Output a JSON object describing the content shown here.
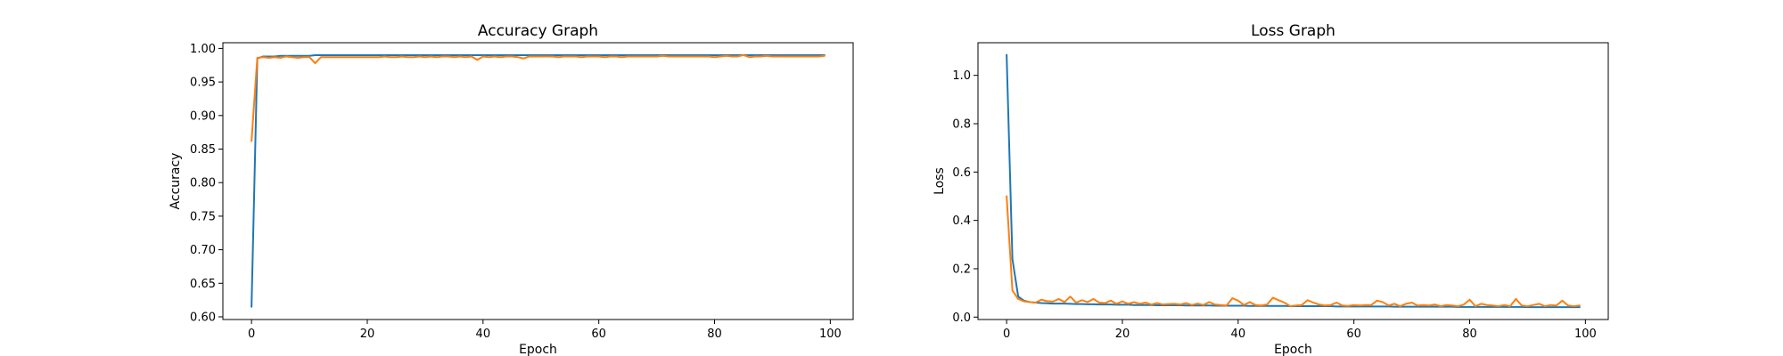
{
  "colors": {
    "series_1": "#1f77b4",
    "series_2": "#ff7f0e"
  },
  "chart_data": [
    {
      "type": "line",
      "title": "Accuracy Graph",
      "xlabel": "Epoch",
      "ylabel": "Accuracy",
      "xlim": [
        -4.95,
        103.95
      ],
      "ylim": [
        0.596,
        1.0085
      ],
      "xticks": [
        0,
        20,
        40,
        60,
        80,
        100
      ],
      "yticks": [
        0.6,
        0.65,
        0.7,
        0.75,
        0.8,
        0.85,
        0.9,
        0.95,
        1.0
      ],
      "ytick_labels": [
        "0.60",
        "0.65",
        "0.70",
        "0.75",
        "0.80",
        "0.85",
        "0.90",
        "0.95",
        "1.00"
      ],
      "grid": false,
      "x": [
        0,
        1,
        2,
        3,
        4,
        5,
        6,
        7,
        8,
        9,
        10,
        11,
        12,
        13,
        14,
        15,
        16,
        17,
        18,
        19,
        20,
        21,
        22,
        23,
        24,
        25,
        26,
        27,
        28,
        29,
        30,
        31,
        32,
        33,
        34,
        35,
        36,
        37,
        38,
        39,
        40,
        41,
        42,
        43,
        44,
        45,
        46,
        47,
        48,
        49,
        50,
        51,
        52,
        53,
        54,
        55,
        56,
        57,
        58,
        59,
        60,
        61,
        62,
        63,
        64,
        65,
        66,
        67,
        68,
        69,
        70,
        71,
        72,
        73,
        74,
        75,
        76,
        77,
        78,
        79,
        80,
        81,
        82,
        83,
        84,
        85,
        86,
        87,
        88,
        89,
        90,
        91,
        92,
        93,
        94,
        95,
        96,
        97,
        98,
        99
      ],
      "series": [
        {
          "color": "series_1",
          "values": [
            0.615,
            0.985,
            0.988,
            0.988,
            0.988,
            0.989,
            0.989,
            0.989,
            0.989,
            0.989,
            0.989,
            0.99,
            0.99,
            0.99,
            0.99,
            0.99,
            0.99,
            0.99,
            0.99,
            0.99,
            0.99,
            0.99,
            0.99,
            0.99,
            0.99,
            0.99,
            0.99,
            0.99,
            0.99,
            0.99,
            0.99,
            0.99,
            0.99,
            0.99,
            0.99,
            0.99,
            0.99,
            0.99,
            0.99,
            0.99,
            0.99,
            0.99,
            0.99,
            0.99,
            0.99,
            0.99,
            0.99,
            0.99,
            0.99,
            0.99,
            0.99,
            0.99,
            0.99,
            0.99,
            0.99,
            0.99,
            0.99,
            0.99,
            0.99,
            0.99,
            0.99,
            0.99,
            0.99,
            0.99,
            0.99,
            0.99,
            0.99,
            0.99,
            0.99,
            0.99,
            0.99,
            0.99,
            0.99,
            0.99,
            0.99,
            0.99,
            0.99,
            0.99,
            0.99,
            0.99,
            0.99,
            0.99,
            0.99,
            0.99,
            0.99,
            0.99,
            0.99,
            0.99,
            0.99,
            0.99,
            0.99,
            0.99,
            0.99,
            0.99,
            0.99,
            0.99,
            0.99,
            0.99,
            0.99,
            0.99
          ]
        },
        {
          "color": "series_2",
          "values": [
            0.862,
            0.986,
            0.987,
            0.986,
            0.987,
            0.986,
            0.988,
            0.987,
            0.986,
            0.987,
            0.987,
            0.978,
            0.987,
            0.987,
            0.987,
            0.987,
            0.987,
            0.987,
            0.987,
            0.987,
            0.987,
            0.987,
            0.987,
            0.988,
            0.987,
            0.987,
            0.988,
            0.987,
            0.987,
            0.988,
            0.987,
            0.988,
            0.987,
            0.988,
            0.988,
            0.987,
            0.988,
            0.987,
            0.988,
            0.983,
            0.988,
            0.987,
            0.988,
            0.987,
            0.988,
            0.988,
            0.987,
            0.985,
            0.988,
            0.988,
            0.988,
            0.988,
            0.988,
            0.987,
            0.988,
            0.988,
            0.988,
            0.987,
            0.988,
            0.988,
            0.988,
            0.987,
            0.988,
            0.988,
            0.987,
            0.988,
            0.988,
            0.988,
            0.988,
            0.988,
            0.988,
            0.989,
            0.988,
            0.988,
            0.988,
            0.988,
            0.988,
            0.988,
            0.988,
            0.988,
            0.987,
            0.988,
            0.989,
            0.988,
            0.988,
            0.99,
            0.987,
            0.988,
            0.988,
            0.989,
            0.988,
            0.988,
            0.988,
            0.988,
            0.988,
            0.988,
            0.988,
            0.988,
            0.988,
            0.989
          ]
        }
      ]
    },
    {
      "type": "line",
      "title": "Loss Graph",
      "xlabel": "Epoch",
      "ylabel": "Loss",
      "xlim": [
        -4.95,
        103.95
      ],
      "ylim": [
        -0.01,
        1.135
      ],
      "xticks": [
        0,
        20,
        40,
        60,
        80,
        100
      ],
      "yticks": [
        0.0,
        0.2,
        0.4,
        0.6,
        0.8,
        1.0
      ],
      "ytick_labels": [
        "0.0",
        "0.2",
        "0.4",
        "0.6",
        "0.8",
        "1.0"
      ],
      "grid": false,
      "x": [
        0,
        1,
        2,
        3,
        4,
        5,
        6,
        7,
        8,
        9,
        10,
        11,
        12,
        13,
        14,
        15,
        16,
        17,
        18,
        19,
        20,
        21,
        22,
        23,
        24,
        25,
        26,
        27,
        28,
        29,
        30,
        31,
        32,
        33,
        34,
        35,
        36,
        37,
        38,
        39,
        40,
        41,
        42,
        43,
        44,
        45,
        46,
        47,
        48,
        49,
        50,
        51,
        52,
        53,
        54,
        55,
        56,
        57,
        58,
        59,
        60,
        61,
        62,
        63,
        64,
        65,
        66,
        67,
        68,
        69,
        70,
        71,
        72,
        73,
        74,
        75,
        76,
        77,
        78,
        79,
        80,
        81,
        82,
        83,
        84,
        85,
        86,
        87,
        88,
        89,
        90,
        91,
        92,
        93,
        94,
        95,
        96,
        97,
        98,
        99
      ],
      "series": [
        {
          "color": "series_1",
          "values": [
            1.085,
            0.24,
            0.085,
            0.068,
            0.062,
            0.06,
            0.058,
            0.057,
            0.056,
            0.056,
            0.056,
            0.055,
            0.054,
            0.054,
            0.053,
            0.053,
            0.052,
            0.052,
            0.052,
            0.051,
            0.051,
            0.051,
            0.05,
            0.05,
            0.05,
            0.05,
            0.049,
            0.049,
            0.049,
            0.049,
            0.049,
            0.048,
            0.048,
            0.048,
            0.048,
            0.048,
            0.047,
            0.047,
            0.047,
            0.047,
            0.047,
            0.047,
            0.046,
            0.046,
            0.046,
            0.046,
            0.046,
            0.046,
            0.046,
            0.045,
            0.045,
            0.045,
            0.045,
            0.045,
            0.045,
            0.045,
            0.045,
            0.044,
            0.044,
            0.044,
            0.044,
            0.044,
            0.044,
            0.044,
            0.044,
            0.044,
            0.044,
            0.043,
            0.043,
            0.043,
            0.043,
            0.043,
            0.043,
            0.043,
            0.043,
            0.043,
            0.043,
            0.043,
            0.042,
            0.042,
            0.042,
            0.042,
            0.042,
            0.042,
            0.042,
            0.042,
            0.042,
            0.042,
            0.042,
            0.042,
            0.041,
            0.041,
            0.041,
            0.041,
            0.041,
            0.041,
            0.041,
            0.041,
            0.041,
            0.041
          ]
        },
        {
          "color": "series_2",
          "values": [
            0.5,
            0.11,
            0.075,
            0.065,
            0.062,
            0.06,
            0.072,
            0.066,
            0.064,
            0.075,
            0.062,
            0.085,
            0.06,
            0.07,
            0.062,
            0.075,
            0.06,
            0.058,
            0.068,
            0.055,
            0.065,
            0.055,
            0.062,
            0.055,
            0.06,
            0.052,
            0.058,
            0.052,
            0.054,
            0.055,
            0.052,
            0.058,
            0.05,
            0.056,
            0.05,
            0.062,
            0.052,
            0.05,
            0.048,
            0.078,
            0.068,
            0.05,
            0.062,
            0.05,
            0.048,
            0.052,
            0.08,
            0.07,
            0.06,
            0.045,
            0.048,
            0.05,
            0.07,
            0.06,
            0.052,
            0.048,
            0.05,
            0.06,
            0.048,
            0.046,
            0.05,
            0.048,
            0.05,
            0.05,
            0.068,
            0.062,
            0.048,
            0.055,
            0.045,
            0.055,
            0.06,
            0.048,
            0.05,
            0.048,
            0.052,
            0.045,
            0.05,
            0.048,
            0.045,
            0.052,
            0.072,
            0.045,
            0.055,
            0.05,
            0.048,
            0.045,
            0.05,
            0.045,
            0.075,
            0.048,
            0.045,
            0.05,
            0.055,
            0.045,
            0.05,
            0.048,
            0.068,
            0.048,
            0.045,
            0.048
          ]
        }
      ]
    }
  ]
}
